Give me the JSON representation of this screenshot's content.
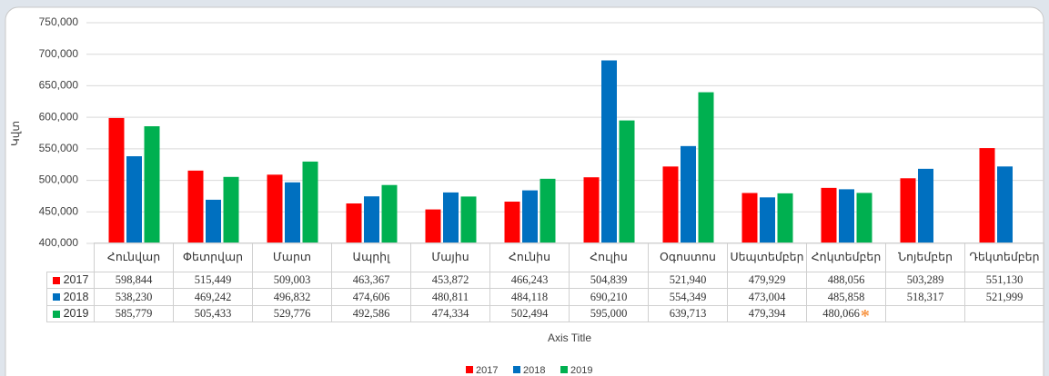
{
  "chart_data": {
    "type": "bar",
    "y_axis_label": "Կվտ",
    "x_axis_label": "Axis Title",
    "categories": [
      "Հունվար",
      "Փետրվար",
      "Մարտ",
      "Ապրիլ",
      "Մայիս",
      "Հունիս",
      "Հուլիս",
      "Օգոստոս",
      "Սեպտեմբեր",
      "Հոկտեմբեր",
      "Նոյեմբեր",
      "Դեկտեմբեր"
    ],
    "series": [
      {
        "name": "2017",
        "color": "#ff0000",
        "values": [
          598844,
          515449,
          509003,
          463367,
          453872,
          466243,
          504839,
          521940,
          479929,
          488056,
          503289,
          551130
        ],
        "value_labels": [
          "598,844",
          "515,449",
          "509,003",
          "463,367",
          "453,872",
          "466,243",
          "504,839",
          "521,940",
          "479,929",
          "488,056",
          "503,289",
          "551,130"
        ]
      },
      {
        "name": "2018",
        "color": "#0070c0",
        "values": [
          538230,
          469242,
          496832,
          474606,
          480811,
          484118,
          690210,
          554349,
          473004,
          485858,
          518317,
          521999
        ],
        "value_labels": [
          "538,230",
          "469,242",
          "496,832",
          "474,606",
          "480,811",
          "484,118",
          "690,210",
          "554,349",
          "473,004",
          "485,858",
          "518,317",
          "521,999"
        ]
      },
      {
        "name": "2019",
        "color": "#00b050",
        "values": [
          585779,
          505433,
          529776,
          492586,
          474334,
          502494,
          595000,
          639713,
          479394,
          480066,
          null,
          null
        ],
        "value_labels": [
          "585,779",
          "505,433",
          "529,776",
          "492,586",
          "474,334",
          "502,494",
          "595,000",
          "639,713",
          "479,394",
          "480,066",
          null,
          null
        ]
      }
    ],
    "annotation": "*",
    "ylim": [
      400000,
      750000
    ],
    "yticks": [
      {
        "value": 400000,
        "label": "400,000"
      },
      {
        "value": 450000,
        "label": "450,000"
      },
      {
        "value": 500000,
        "label": "500,000"
      },
      {
        "value": 550000,
        "label": "550,000"
      },
      {
        "value": 600000,
        "label": "600,000"
      },
      {
        "value": 650000,
        "label": "650,000"
      },
      {
        "value": 700000,
        "label": "700,000"
      },
      {
        "value": 750000,
        "label": "750,000"
      }
    ],
    "grid": true
  }
}
